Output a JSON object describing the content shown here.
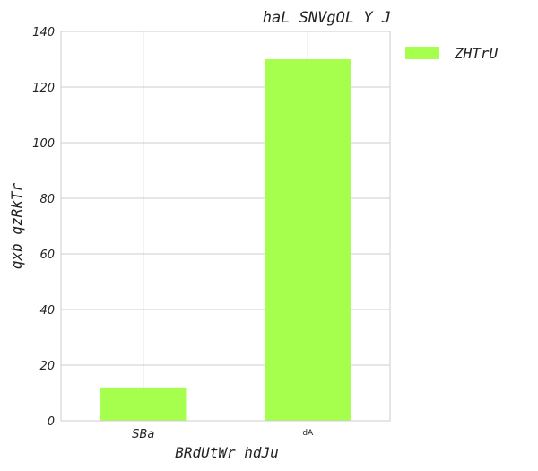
{
  "chart_data": {
    "type": "bar",
    "title": "haL SNVgOL Y J",
    "xlabel": "BRdUtWr hdJu",
    "ylabel": "qxb qzRkTr",
    "categories": [
      "SBa",
      "dA"
    ],
    "series": [
      {
        "name": "ZHTrU",
        "values": [
          12,
          130
        ],
        "color": "#a6ff4d"
      }
    ],
    "ylim": [
      0,
      140
    ],
    "yticks": [
      0,
      20,
      40,
      60,
      80,
      100,
      120,
      140
    ],
    "grid": true,
    "legend_position": "outside-top-right"
  }
}
